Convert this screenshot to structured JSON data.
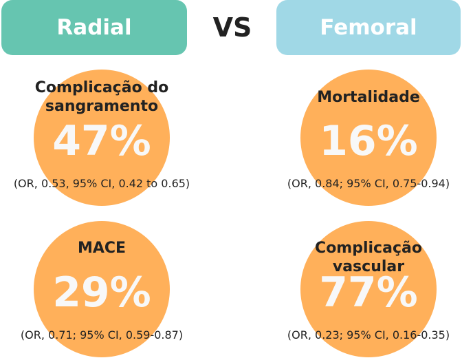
{
  "header": {
    "left": "Radial",
    "vs": "VS",
    "right": "Femoral"
  },
  "items": [
    {
      "label": "Complicação do sangramento",
      "value": "47%",
      "ci": "(OR, 0.53, 95% CI, 0.42 to 0.65)"
    },
    {
      "label": "Mortalidade",
      "value": "16%",
      "ci": "(OR, 0.84; 95% CI, 0.75-0.94)"
    },
    {
      "label": "MACE",
      "value": "29%",
      "ci": "(OR, 0.71; 95% CI, 0.59-0.87)"
    },
    {
      "label": "Complicação vascular",
      "value": "77%",
      "ci": "(OR, 0.23; 95% CI, 0.16-0.35)"
    }
  ]
}
